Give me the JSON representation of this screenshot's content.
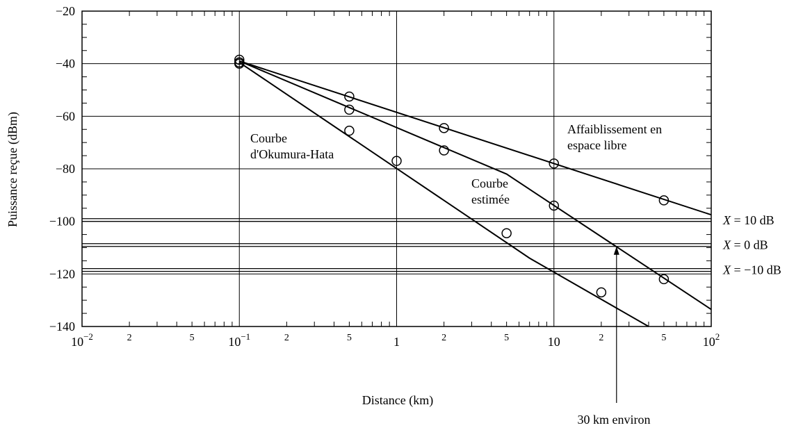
{
  "chart_data": {
    "type": "line",
    "title": "",
    "xlabel": "Distance (km)",
    "ylabel": "Puissance reçue (dBm)",
    "x_scale": "log",
    "xlim": [
      0.01,
      100
    ],
    "ylim": [
      -140,
      -20
    ],
    "grid": true,
    "x_major_ticks": [
      {
        "value": 0.01,
        "base": "10",
        "exp": "−2"
      },
      {
        "value": 0.1,
        "base": "10",
        "exp": "−1"
      },
      {
        "value": 1,
        "base": "1",
        "exp": ""
      },
      {
        "value": 10,
        "base": "10",
        "exp": ""
      },
      {
        "value": 100,
        "base": "10",
        "exp": "2"
      }
    ],
    "x_minor_labels": [
      {
        "value": 0.02,
        "label": "2"
      },
      {
        "value": 0.05,
        "label": "5"
      },
      {
        "value": 0.2,
        "label": "2"
      },
      {
        "value": 0.5,
        "label": "5"
      },
      {
        "value": 2,
        "label": "2"
      },
      {
        "value": 5,
        "label": "5"
      },
      {
        "value": 20,
        "label": "2"
      },
      {
        "value": 50,
        "label": "5"
      }
    ],
    "y_ticks": [
      {
        "value": -20,
        "label": "−20"
      },
      {
        "value": -40,
        "label": "−40"
      },
      {
        "value": -60,
        "label": "−60"
      },
      {
        "value": -80,
        "label": "−80"
      },
      {
        "value": -100,
        "label": "−100"
      },
      {
        "value": -120,
        "label": "−120"
      },
      {
        "value": -140,
        "label": "−140"
      }
    ],
    "series": [
      {
        "name": "Affaiblissement en espace libre",
        "label_lines": [
          "Affaiblissement en",
          "espace libre"
        ],
        "line": [
          [
            0.1,
            -39
          ],
          [
            100,
            -97.5
          ]
        ],
        "points": [
          [
            0.1,
            -38.5
          ],
          [
            0.5,
            -52.5
          ],
          [
            2,
            -64.5
          ],
          [
            10,
            -78
          ],
          [
            50,
            -92
          ]
        ]
      },
      {
        "name": "Courbe estimée",
        "label_lines": [
          "Courbe",
          "estimée"
        ],
        "line": [
          [
            0.1,
            -39
          ],
          [
            5,
            -82
          ],
          [
            100,
            -133.5
          ]
        ],
        "points": [
          [
            0.1,
            -39.5
          ],
          [
            0.5,
            -57.5
          ],
          [
            2,
            -73
          ],
          [
            10,
            -94
          ],
          [
            50,
            -122
          ]
        ]
      },
      {
        "name": "Courbe d'Okumura-Hata",
        "label_lines": [
          "Courbe",
          "d'Okumura-Hata"
        ],
        "line": [
          [
            0.1,
            -39.5
          ],
          [
            7,
            -114
          ],
          [
            40,
            -140
          ]
        ],
        "points": [
          [
            0.1,
            -40
          ],
          [
            0.5,
            -65.5
          ],
          [
            1,
            -77
          ],
          [
            5,
            -104.5
          ],
          [
            20,
            -127
          ]
        ]
      }
    ],
    "thresholds": [
      {
        "label_var": "X",
        "label_val": " = 10 dB",
        "y": -99.5
      },
      {
        "label_var": "X",
        "label_val": " = 0 dB",
        "y": -109
      },
      {
        "label_var": "X",
        "label_val": " = −10 dB",
        "y": -118.5
      }
    ],
    "annotation": {
      "text": "30 km environ",
      "x": 25,
      "y": -109
    }
  }
}
